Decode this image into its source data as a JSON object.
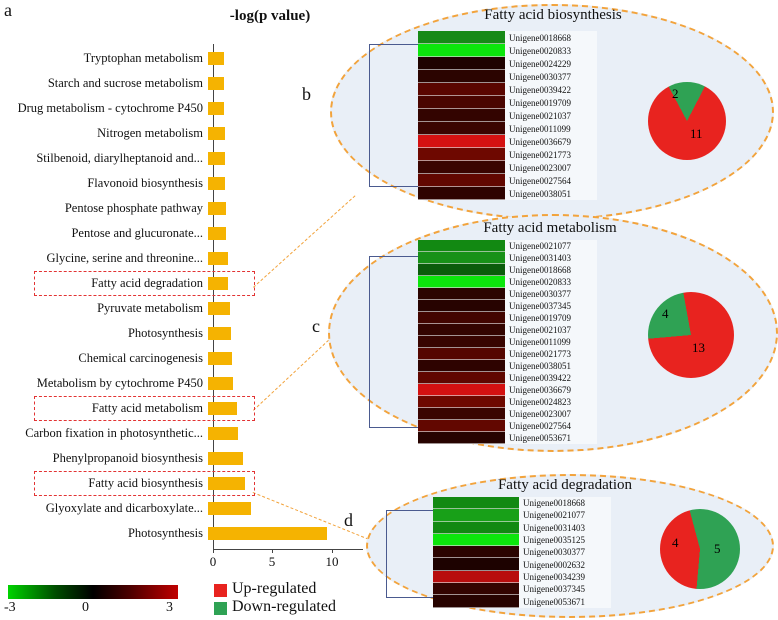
{
  "panel_letters": {
    "a": "a",
    "b": "b",
    "c": "c",
    "d": "d"
  },
  "legend": {
    "up_label": "Up-regulated",
    "down_label": "Down-regulated",
    "up_color": "#E8231F",
    "down_color": "#2FA254"
  },
  "color_scale": {
    "min": "-3",
    "mid": "0",
    "max": "3"
  },
  "chart_data": [
    {
      "type": "bar",
      "orientation": "horizontal",
      "title": "-log(p value)",
      "xlim": [
        0,
        12.5
      ],
      "xticks": [
        "0",
        "5",
        "10"
      ],
      "bar_color": "#F5B301",
      "grid": false,
      "categories": [
        "Tryptophan metabolism",
        "Starch and sucrose metabolism",
        "Drug metabolism - cytochrome P450",
        "Nitrogen metabolism",
        "Stilbenoid, diarylheptanoid and...",
        "Flavonoid biosynthesis",
        "Pentose phosphate pathway",
        "Pentose and glucuronate...",
        "Glycine, serine and threonine...",
        "Fatty acid degradation",
        "Pyruvate metabolism",
        "Photosynthesis",
        "Chemical carcinogenesis",
        "Metabolism by cytochrome P450",
        "Fatty acid metabolism",
        "Carbon fixation in photosynthetic...",
        "Phenylpropanoid biosynthesis",
        "Fatty acid biosynthesis",
        "Glyoxylate and dicarboxylate...",
        "Photosynthesis"
      ],
      "values": [
        1.3,
        1.35,
        1.35,
        1.4,
        1.4,
        1.45,
        1.5,
        1.55,
        1.65,
        1.7,
        1.85,
        1.9,
        2.0,
        2.1,
        2.4,
        2.5,
        2.9,
        3.1,
        3.6,
        10.0
      ],
      "highlighted_categories": [
        "Fatty acid degradation",
        "Fatty acid metabolism",
        "Fatty acid biosynthesis"
      ]
    },
    {
      "type": "heatmap",
      "title": "Fatty acid biosynthesis",
      "scale": {
        "min": -3,
        "mid": 0,
        "max": 3
      },
      "rows": [
        {
          "label": "Unigene0018668",
          "color": "#178A17"
        },
        {
          "label": "Unigene0020833",
          "color": "#0CE60C"
        },
        {
          "label": "Unigene0024229",
          "color": "#1F0300"
        },
        {
          "label": "Unigene0030377",
          "color": "#2B0400"
        },
        {
          "label": "Unigene0039422",
          "color": "#5A0600"
        },
        {
          "label": "Unigene0019709",
          "color": "#4A0500"
        },
        {
          "label": "Unigene0021037",
          "color": "#330400"
        },
        {
          "label": "Unigene0011099",
          "color": "#3A0400"
        },
        {
          "label": "Unigene0036679",
          "color": "#D41111"
        },
        {
          "label": "Unigene0021773",
          "color": "#6E0800"
        },
        {
          "label": "Unigene0023007",
          "color": "#3A0400"
        },
        {
          "label": "Unigene0027564",
          "color": "#620700"
        },
        {
          "label": "Unigene0038051",
          "color": "#2E0300"
        }
      ]
    },
    {
      "type": "pie",
      "title": "Fatty acid biosynthesis",
      "slices": [
        {
          "label": "Down-regulated",
          "value": 2,
          "color": "#2FA254"
        },
        {
          "label": "Up-regulated",
          "value": 11,
          "color": "#E8231F"
        }
      ]
    },
    {
      "type": "heatmap",
      "title": "Fatty acid metabolism",
      "scale": {
        "min": -3,
        "mid": 0,
        "max": 3
      },
      "rows": [
        {
          "label": "Unigene0021077",
          "color": "#128912"
        },
        {
          "label": "Unigene0031403",
          "color": "#179117"
        },
        {
          "label": "Unigene0018668",
          "color": "#0B5C0B"
        },
        {
          "label": "Unigene0020833",
          "color": "#0CE60C"
        },
        {
          "label": "Unigene0030377",
          "color": "#2B0400"
        },
        {
          "label": "Unigene0037345",
          "color": "#270300"
        },
        {
          "label": "Unigene0019709",
          "color": "#420500"
        },
        {
          "label": "Unigene0021037",
          "color": "#330400"
        },
        {
          "label": "Unigene0011099",
          "color": "#380400"
        },
        {
          "label": "Unigene0021773",
          "color": "#550600"
        },
        {
          "label": "Unigene0038051",
          "color": "#2E0300"
        },
        {
          "label": "Unigene0039422",
          "color": "#600700"
        },
        {
          "label": "Unigene0036679",
          "color": "#D41111"
        },
        {
          "label": "Unigene0024823",
          "color": "#6E0800"
        },
        {
          "label": "Unigene0023007",
          "color": "#3A0400"
        },
        {
          "label": "Unigene0027564",
          "color": "#620700"
        },
        {
          "label": "Unigene0053671",
          "color": "#270300"
        }
      ]
    },
    {
      "type": "pie",
      "title": "Fatty acid metabolism",
      "slices": [
        {
          "label": "Down-regulated",
          "value": 4,
          "color": "#2FA254"
        },
        {
          "label": "Up-regulated",
          "value": 13,
          "color": "#E8231F"
        }
      ]
    },
    {
      "type": "heatmap",
      "title": "Fatty acid degradation",
      "scale": {
        "min": -3,
        "mid": 0,
        "max": 3
      },
      "rows": [
        {
          "label": "Unigene0018668",
          "color": "#128912"
        },
        {
          "label": "Unigene0021077",
          "color": "#18A018"
        },
        {
          "label": "Unigene0031403",
          "color": "#128912"
        },
        {
          "label": "Unigene0035125",
          "color": "#0CE60C"
        },
        {
          "label": "Unigene0030377",
          "color": "#2B0400"
        },
        {
          "label": "Unigene0002632",
          "color": "#1D0200"
        },
        {
          "label": "Unigene0034239",
          "color": "#B80D0D"
        },
        {
          "label": "Unigene0037345",
          "color": "#330400"
        },
        {
          "label": "Unigene0053671",
          "color": "#270300"
        }
      ]
    },
    {
      "type": "pie",
      "title": "Fatty acid degradation",
      "slices": [
        {
          "label": "Up-regulated",
          "value": 4,
          "color": "#E8231F"
        },
        {
          "label": "Down-regulated",
          "value": 5,
          "color": "#2FA254"
        }
      ]
    }
  ]
}
